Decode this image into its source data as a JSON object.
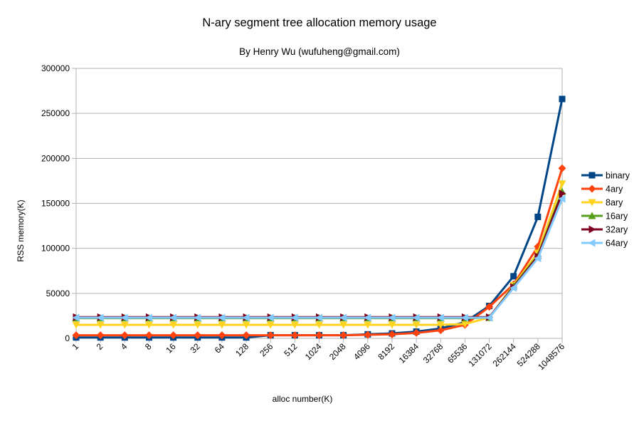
{
  "chart_data": {
    "type": "line",
    "title": "N-ary segment tree allocation memory usage",
    "subtitle": "By Henry Wu (wufuheng@gmail.com)",
    "xlabel": "alloc number(K)",
    "ylabel": "RSS memory(K)",
    "ylim": [
      0,
      300000
    ],
    "yticks": [
      0,
      50000,
      100000,
      150000,
      200000,
      250000,
      300000
    ],
    "ytick_labels": [
      "0",
      "50000",
      "100000",
      "150000",
      "200000",
      "250000",
      "300000"
    ],
    "grid": "horizontal",
    "legend_position": "right",
    "categories": [
      "1",
      "2",
      "4",
      "8",
      "16",
      "32",
      "64",
      "128",
      "256",
      "512",
      "1024",
      "2048",
      "4096",
      "8192",
      "16384",
      "32768",
      "65536",
      "131072",
      "262144",
      "524288",
      "1048576"
    ],
    "series": [
      {
        "name": "binary",
        "color": "#004586",
        "marker": "square",
        "values": [
          1000,
          1000,
          1000,
          1000,
          1000,
          1000,
          1000,
          1000,
          3500,
          3500,
          3500,
          3500,
          4500,
          5500,
          7500,
          11000,
          18000,
          36000,
          69000,
          135000,
          266000
        ]
      },
      {
        "name": "4ary",
        "color": "#ff420e",
        "marker": "diamond",
        "values": [
          3500,
          3500,
          3500,
          3500,
          3500,
          3500,
          3500,
          3500,
          3500,
          3500,
          3500,
          3500,
          4000,
          4500,
          6000,
          9000,
          15000,
          35000,
          60000,
          102000,
          189000
        ]
      },
      {
        "name": "8ary",
        "color": "#ffd320",
        "marker": "triangle-down",
        "values": [
          15000,
          15000,
          15000,
          15000,
          15000,
          15000,
          15000,
          15000,
          15000,
          15000,
          15000,
          15000,
          15000,
          15000,
          15000,
          15000,
          16000,
          23000,
          59000,
          95000,
          172000
        ]
      },
      {
        "name": "16ary",
        "color": "#579d1c",
        "marker": "triangle-up",
        "values": [
          22500,
          22500,
          22500,
          22500,
          22500,
          22500,
          22500,
          22500,
          22500,
          22500,
          22500,
          22500,
          22500,
          22500,
          22500,
          22500,
          22500,
          23000,
          58000,
          92000,
          163000
        ]
      },
      {
        "name": "32ary",
        "color": "#7e0021",
        "marker": "triangle-right",
        "values": [
          23500,
          23500,
          23500,
          23500,
          23500,
          23500,
          23500,
          23500,
          23500,
          23500,
          23500,
          23500,
          23500,
          23500,
          23500,
          23500,
          23500,
          23500,
          57000,
          91000,
          161000
        ]
      },
      {
        "name": "64ary",
        "color": "#83caff",
        "marker": "triangle-left",
        "values": [
          23000,
          23000,
          23000,
          23000,
          23000,
          23000,
          23000,
          23000,
          23000,
          23000,
          23000,
          23000,
          23000,
          23000,
          23000,
          23000,
          23000,
          23000,
          56000,
          89000,
          155000
        ]
      }
    ]
  }
}
